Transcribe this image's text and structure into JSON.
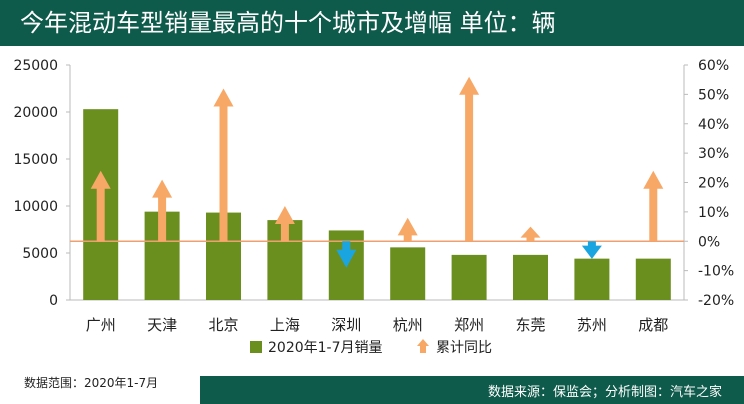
{
  "title": "今年混动车型销量最高的十个城市及增幅  单位：辆",
  "note": "数据范围：2020年1-7月",
  "source": "数据来源：保监会；分析制图：汽车之家",
  "colors": {
    "header_bg": "#0e5a4b",
    "bar": "#6a8f1f",
    "arrow_up": "#f7a866",
    "arrow_down": "#1aa5e0",
    "zero_line": "#f0a070"
  },
  "chart_data": {
    "type": "bar",
    "categories": [
      "广州",
      "天津",
      "北京",
      "上海",
      "深圳",
      "杭州",
      "郑州",
      "东莞",
      "苏州",
      "成都"
    ],
    "series": [
      {
        "name": "2020年1-7月销量",
        "axis": "left",
        "mark": "bar",
        "values": [
          20300,
          9400,
          9300,
          8500,
          7400,
          5600,
          4800,
          4800,
          4400,
          4400
        ]
      },
      {
        "name": "累计同比",
        "axis": "right",
        "mark": "arrow",
        "unit": "%",
        "values": [
          24,
          21,
          52,
          12,
          -9,
          8,
          56,
          5,
          -6,
          24
        ]
      }
    ],
    "y_left": {
      "min": 0,
      "max": 25000,
      "ticks": [
        "0",
        "5000",
        "10000",
        "15000",
        "20000",
        "25000"
      ]
    },
    "y_right": {
      "min": -20,
      "max": 60,
      "ticks": [
        "-20%",
        "-10%",
        "0%",
        "10%",
        "20%",
        "30%",
        "40%",
        "50%",
        "60%"
      ]
    },
    "legend_position": "bottom",
    "grid": false
  }
}
